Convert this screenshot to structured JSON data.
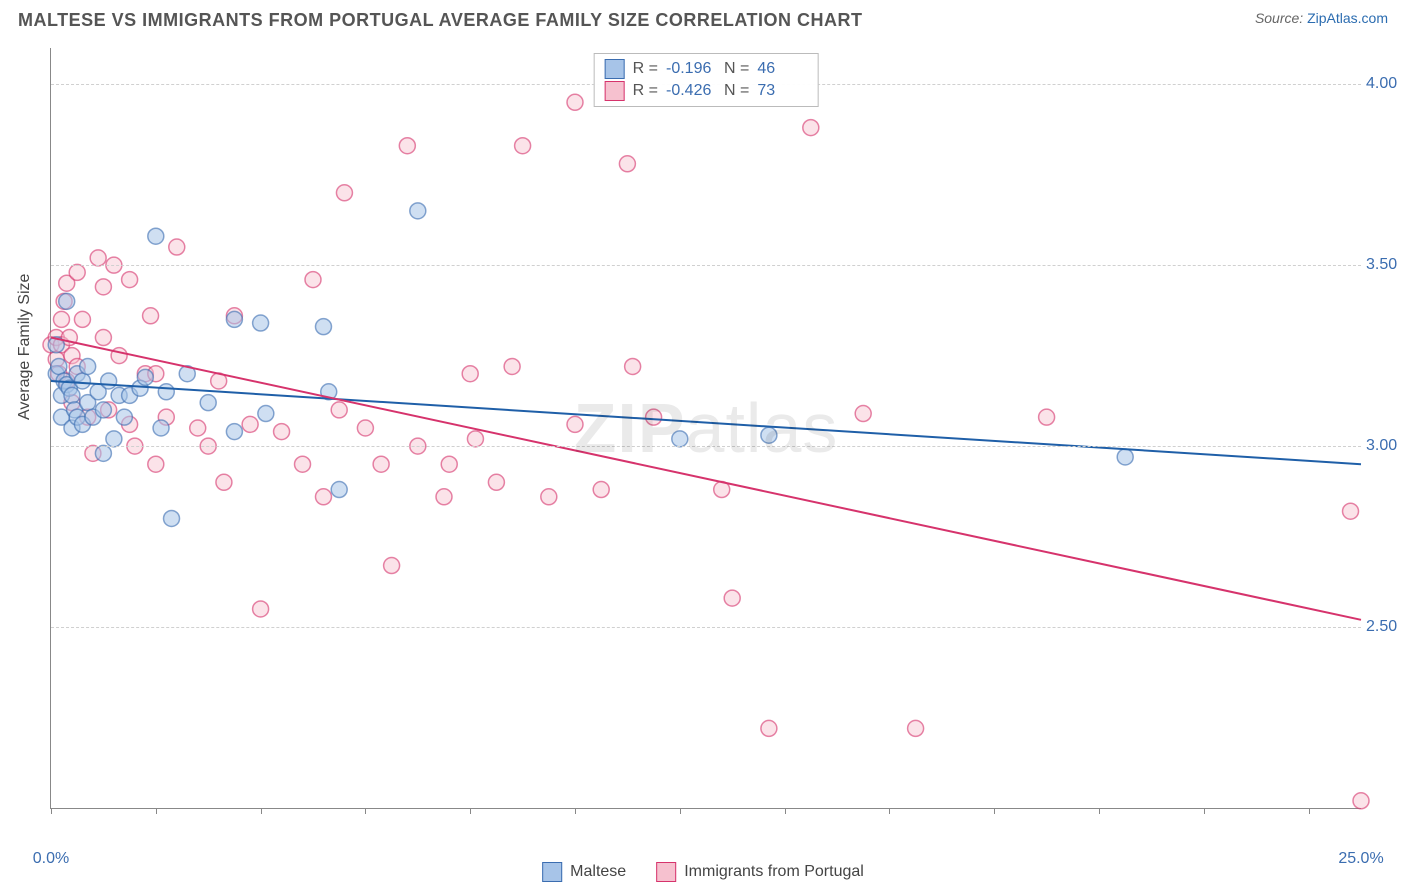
{
  "header": {
    "title": "MALTESE VS IMMIGRANTS FROM PORTUGAL AVERAGE FAMILY SIZE CORRELATION CHART",
    "source_prefix": "Source: ",
    "source_link": "ZipAtlas.com"
  },
  "watermark": {
    "bold": "ZIP",
    "rest": "atlas"
  },
  "chart": {
    "type": "scatter-with-regression",
    "x": {
      "min": 0,
      "max": 25,
      "ticks_pct": [
        0,
        2,
        4,
        6,
        8,
        10,
        12,
        14,
        16,
        18,
        20,
        22,
        24
      ],
      "label_start": "0.0%",
      "label_end": "25.0%"
    },
    "y": {
      "min": 2.0,
      "max": 4.1,
      "ticks": [
        2.5,
        3.0,
        3.5,
        4.0
      ],
      "label": "Average Family Size"
    },
    "grid_color": "#d0d0d0",
    "background": "#ffffff",
    "circle_radius": 8,
    "circle_stroke_width": 1.5,
    "series": [
      {
        "key": "maltese",
        "name": "Maltese",
        "fill": "#a7c4e8",
        "stroke": "#3b6db0",
        "fill_opacity": 0.55,
        "R": "-0.196",
        "N": "46",
        "regression": {
          "y_at_x0": 3.18,
          "y_at_x25": 2.95,
          "color": "#1f5fa8",
          "width": 2
        },
        "points": [
          [
            0.1,
            3.28
          ],
          [
            0.1,
            3.2
          ],
          [
            0.15,
            3.22
          ],
          [
            0.2,
            3.08
          ],
          [
            0.2,
            3.14
          ],
          [
            0.25,
            3.18
          ],
          [
            0.3,
            3.17
          ],
          [
            0.3,
            3.4
          ],
          [
            0.35,
            3.16
          ],
          [
            0.4,
            3.14
          ],
          [
            0.4,
            3.05
          ],
          [
            0.45,
            3.1
          ],
          [
            0.5,
            3.2
          ],
          [
            0.5,
            3.08
          ],
          [
            0.6,
            3.06
          ],
          [
            0.6,
            3.18
          ],
          [
            0.7,
            3.22
          ],
          [
            0.7,
            3.12
          ],
          [
            0.8,
            3.08
          ],
          [
            0.9,
            3.15
          ],
          [
            1.0,
            2.98
          ],
          [
            1.0,
            3.1
          ],
          [
            1.1,
            3.18
          ],
          [
            1.2,
            3.02
          ],
          [
            1.3,
            3.14
          ],
          [
            1.4,
            3.08
          ],
          [
            1.5,
            3.14
          ],
          [
            1.7,
            3.16
          ],
          [
            1.8,
            3.19
          ],
          [
            2.0,
            3.58
          ],
          [
            2.1,
            3.05
          ],
          [
            2.2,
            3.15
          ],
          [
            2.3,
            2.8
          ],
          [
            2.6,
            3.2
          ],
          [
            3.0,
            3.12
          ],
          [
            3.5,
            3.35
          ],
          [
            3.5,
            3.04
          ],
          [
            4.0,
            3.34
          ],
          [
            4.1,
            3.09
          ],
          [
            5.2,
            3.33
          ],
          [
            5.3,
            3.15
          ],
          [
            5.5,
            2.88
          ],
          [
            7.0,
            3.65
          ],
          [
            12.0,
            3.02
          ],
          [
            13.7,
            3.03
          ],
          [
            20.5,
            2.97
          ]
        ]
      },
      {
        "key": "portugal",
        "name": "Immigrants from Portugal",
        "fill": "#f6c1cf",
        "stroke": "#d6336c",
        "fill_opacity": 0.45,
        "R": "-0.426",
        "N": "73",
        "regression": {
          "y_at_x0": 3.3,
          "y_at_x25": 2.52,
          "color": "#d6336c",
          "width": 2
        },
        "points": [
          [
            0.0,
            3.28
          ],
          [
            0.1,
            3.3
          ],
          [
            0.1,
            3.24
          ],
          [
            0.15,
            3.2
          ],
          [
            0.2,
            3.35
          ],
          [
            0.2,
            3.28
          ],
          [
            0.25,
            3.4
          ],
          [
            0.3,
            3.18
          ],
          [
            0.3,
            3.45
          ],
          [
            0.35,
            3.3
          ],
          [
            0.4,
            3.25
          ],
          [
            0.4,
            3.12
          ],
          [
            0.5,
            3.22
          ],
          [
            0.5,
            3.48
          ],
          [
            0.6,
            3.35
          ],
          [
            0.7,
            3.08
          ],
          [
            0.8,
            2.98
          ],
          [
            0.9,
            3.52
          ],
          [
            1.0,
            3.3
          ],
          [
            1.0,
            3.44
          ],
          [
            1.1,
            3.1
          ],
          [
            1.2,
            3.5
          ],
          [
            1.3,
            3.25
          ],
          [
            1.5,
            3.06
          ],
          [
            1.5,
            3.46
          ],
          [
            1.6,
            3.0
          ],
          [
            1.8,
            3.2
          ],
          [
            1.9,
            3.36
          ],
          [
            2.0,
            2.95
          ],
          [
            2.0,
            3.2
          ],
          [
            2.2,
            3.08
          ],
          [
            2.4,
            3.55
          ],
          [
            2.8,
            3.05
          ],
          [
            3.0,
            3.0
          ],
          [
            3.2,
            3.18
          ],
          [
            3.3,
            2.9
          ],
          [
            3.5,
            3.36
          ],
          [
            3.8,
            3.06
          ],
          [
            4.0,
            2.55
          ],
          [
            4.4,
            3.04
          ],
          [
            4.8,
            2.95
          ],
          [
            5.0,
            3.46
          ],
          [
            5.2,
            2.86
          ],
          [
            5.5,
            3.1
          ],
          [
            5.6,
            3.7
          ],
          [
            6.0,
            3.05
          ],
          [
            6.3,
            2.95
          ],
          [
            6.5,
            2.67
          ],
          [
            6.8,
            3.83
          ],
          [
            7.0,
            3.0
          ],
          [
            7.5,
            2.86
          ],
          [
            7.6,
            2.95
          ],
          [
            8.0,
            3.2
          ],
          [
            8.1,
            3.02
          ],
          [
            8.5,
            2.9
          ],
          [
            8.8,
            3.22
          ],
          [
            9.0,
            3.83
          ],
          [
            9.5,
            2.86
          ],
          [
            10.0,
            3.95
          ],
          [
            10.0,
            3.06
          ],
          [
            10.5,
            2.88
          ],
          [
            11.0,
            3.78
          ],
          [
            11.1,
            3.22
          ],
          [
            11.5,
            3.08
          ],
          [
            12.8,
            2.88
          ],
          [
            13.0,
            2.58
          ],
          [
            13.7,
            2.22
          ],
          [
            14.5,
            3.88
          ],
          [
            15.5,
            3.09
          ],
          [
            16.5,
            2.22
          ],
          [
            19.0,
            3.08
          ],
          [
            24.8,
            2.82
          ],
          [
            25.0,
            2.02
          ]
        ]
      }
    ]
  },
  "legend_bottom": [
    {
      "key": "maltese",
      "label": "Maltese"
    },
    {
      "key": "portugal",
      "label": "Immigrants from Portugal"
    }
  ]
}
